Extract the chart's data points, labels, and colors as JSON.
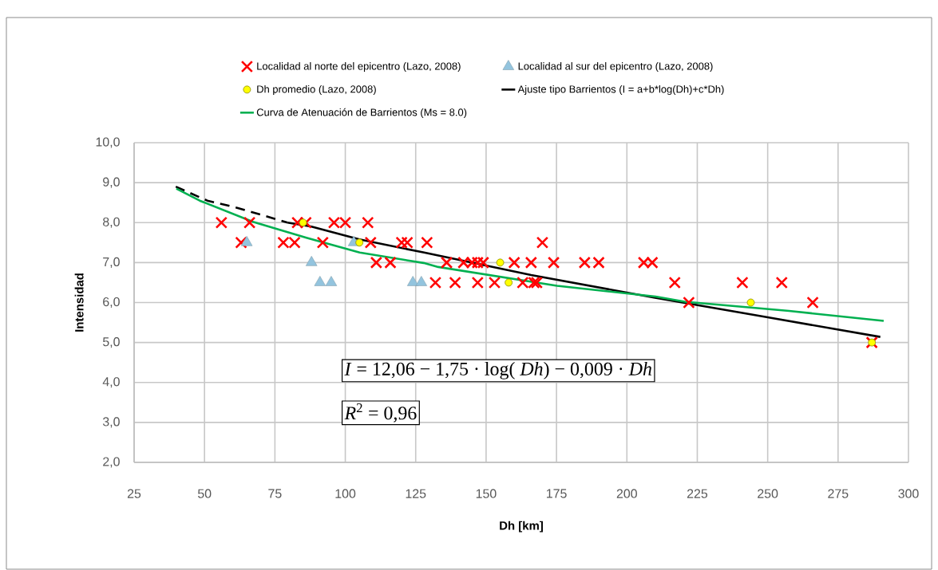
{
  "chart_data": {
    "type": "scatter",
    "xlabel": "Dh [km]",
    "ylabel": "Intensidad",
    "xlim": [
      25,
      300
    ],
    "ylim": [
      2,
      10
    ],
    "xticks": [
      25,
      50,
      75,
      100,
      125,
      150,
      175,
      200,
      225,
      250,
      275,
      300
    ],
    "yticks": [
      {
        "value": 2,
        "label": "2,0"
      },
      {
        "value": 3,
        "label": "3,0"
      },
      {
        "value": 4,
        "label": "4,0"
      },
      {
        "value": 5,
        "label": "5,0"
      },
      {
        "value": 6,
        "label": "6,0"
      },
      {
        "value": 7,
        "label": "7,0"
      },
      {
        "value": 8,
        "label": "8,0"
      },
      {
        "value": 9,
        "label": "9,0"
      },
      {
        "value": 10,
        "label": "10,0"
      }
    ],
    "grid": true,
    "legend": "top",
    "annotations": [
      "*I* = 12,06 − 1,75 · log( *Dh*) − 0,009 · *Dh*",
      "*R*$^{2}$ = 0,96"
    ],
    "series": [
      {
        "name": "Localidad al norte del epicentro (Lazo, 2008)",
        "marker": "cross",
        "color": "#ff0000",
        "x": [
          56,
          66,
          83,
          86,
          96,
          100,
          108,
          63,
          78,
          82,
          92,
          109,
          120,
          122,
          129,
          170,
          111,
          116,
          136,
          142,
          145,
          147,
          149,
          160,
          166,
          174,
          185,
          190,
          206,
          209,
          132,
          139,
          147,
          153,
          163,
          167,
          168,
          217,
          241,
          255,
          222,
          266,
          287
        ],
        "values": [
          8.0,
          8.0,
          8.0,
          8.0,
          8.0,
          8.0,
          8.0,
          7.5,
          7.5,
          7.5,
          7.5,
          7.5,
          7.5,
          7.5,
          7.5,
          7.5,
          7.0,
          7.0,
          7.0,
          7.0,
          7.0,
          7.0,
          7.0,
          7.0,
          7.0,
          7.0,
          7.0,
          7.0,
          7.0,
          7.0,
          6.5,
          6.5,
          6.5,
          6.5,
          6.5,
          6.5,
          6.5,
          6.5,
          6.5,
          6.5,
          6.0,
          6.0,
          5.0
        ]
      },
      {
        "name": "Localidad al sur del epicentro (Lazo, 2008)",
        "marker": "triangle",
        "color": "#93c4de",
        "x": [
          65,
          88,
          91,
          95,
          103,
          124,
          127
        ],
        "values": [
          7.5,
          7.0,
          6.5,
          6.5,
          7.5,
          6.5,
          6.5
        ]
      },
      {
        "name": "Dh promedio (Lazo, 2008)",
        "marker": "circle",
        "color": "#ffff00",
        "x": [
          85,
          105,
          155,
          158,
          244,
          287
        ],
        "values": [
          8.0,
          7.5,
          7.0,
          6.5,
          6.0,
          5.0
        ]
      },
      {
        "name": "Ajuste tipo Barrientos (I = a+b*log(Dh)+c*Dh)",
        "type": "line",
        "line_style": "solid",
        "color": "#000000",
        "x": [
          79.5,
          88,
          105,
          128,
          166,
          210,
          250,
          290
        ],
        "values": [
          8.0,
          7.9,
          7.58,
          7.25,
          6.69,
          6.12,
          5.63,
          5.14
        ]
      },
      {
        "type": "line",
        "line_style": "dashed",
        "color": "#000000",
        "x": [
          39.8,
          51,
          61.6,
          71,
          79.5
        ],
        "values": [
          8.9,
          8.55,
          8.37,
          8.18,
          8.0
        ]
      },
      {
        "name": "Curva de Atenuación de Barrientos (Ms = 8.0)",
        "type": "line",
        "line_style": "solid",
        "color": "#00b050",
        "x": [
          40,
          48.3,
          67.2,
          86.2,
          105.1,
          127.8,
          133,
          175.2,
          210.2,
          220.6,
          257.6,
          291.2
        ],
        "values": [
          8.85,
          8.55,
          8.02,
          7.62,
          7.25,
          6.99,
          6.89,
          6.42,
          6.15,
          6.02,
          5.79,
          5.54
        ]
      }
    ]
  }
}
